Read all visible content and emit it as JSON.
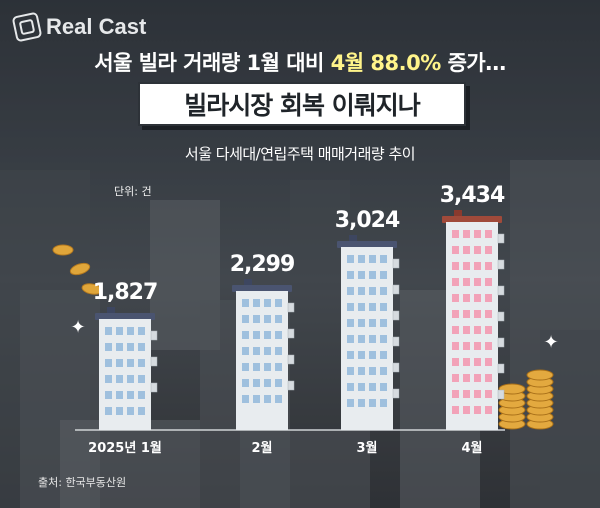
{
  "brand": {
    "name": "Real Cast"
  },
  "headline": {
    "prefix": "서울 빌라 거래량 1월 대비 ",
    "highlight": "4월 88.0%",
    "suffix": " 증가…"
  },
  "title": "빌라시장 회복 이뤄지나",
  "subtitle": "서울 다세대/연립주택 매매거래량 추이",
  "unit_label": "단위: 건",
  "source": "출처: 한국부동산원",
  "colors": {
    "building_body": "#e8ecef",
    "window": "#9fc0de",
    "roof": "#4a5470",
    "highlight_window": "#f2a2b8",
    "highlight_roof": "#a04a3a",
    "headline_accent": "#fff48a"
  },
  "chart_data": {
    "type": "bar",
    "title": "서울 다세대/연립주택 매매거래량 추이",
    "unit": "건",
    "categories": [
      "2025년 1월",
      "2월",
      "3월",
      "4월"
    ],
    "value_labels": [
      "1,827",
      "2,299",
      "3,024",
      "3,434"
    ],
    "values": [
      1827,
      2299,
      3024,
      3434
    ],
    "xlabel": "",
    "ylabel": "",
    "grid": false,
    "legend": "none"
  }
}
